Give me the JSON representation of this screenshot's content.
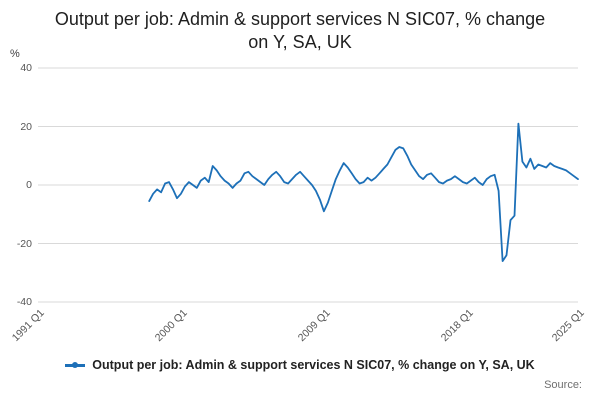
{
  "title": "Output per job: Admin & support services N SIC07, % change on Y, SA, UK",
  "legend": {
    "label": "Output per job: Admin & support services N SIC07, % change on Y, SA, UK"
  },
  "footer": {
    "source_label": "Source:"
  },
  "colors": {
    "line": "#1d70b8",
    "grid": "#d9d9d9",
    "tick_text": "#555555",
    "title_text": "#1f1f1f",
    "source_text": "#6f6f6f"
  },
  "chart_data": {
    "type": "line",
    "title": "Output per job: Admin & support services N SIC07, % change on Y, SA, UK",
    "xlabel": "",
    "ylabel": "%",
    "ylim": [
      -40,
      40
    ],
    "yticks": [
      40,
      20,
      0,
      -20,
      -40
    ],
    "grid": true,
    "legend_position": "bottom",
    "x_axis_period": "quarterly",
    "x_total_quarters": 136,
    "x_range_labels": [
      "1991 Q1",
      "2025 Q1"
    ],
    "xticks": [
      {
        "label": "1991 Q1",
        "quarter_index": 0
      },
      {
        "label": "2000 Q1",
        "quarter_index": 36
      },
      {
        "label": "2009 Q1",
        "quarter_index": 72
      },
      {
        "label": "2018 Q1",
        "quarter_index": 108
      },
      {
        "label": "2025 Q1",
        "quarter_index": 136
      }
    ],
    "series_start_label": "1998 Q1",
    "start_index": 28,
    "values": [
      -5.5,
      -3.0,
      -1.5,
      -2.5,
      0.5,
      1.0,
      -1.5,
      -4.5,
      -3.0,
      -0.5,
      1.0,
      0.0,
      -1.0,
      1.5,
      2.5,
      1.0,
      6.5,
      5.0,
      3.0,
      1.5,
      0.5,
      -1.0,
      0.5,
      1.5,
      4.0,
      4.5,
      3.0,
      2.0,
      1.0,
      0.0,
      2.0,
      3.5,
      4.5,
      3.0,
      1.0,
      0.5,
      2.0,
      3.5,
      4.5,
      3.0,
      1.5,
      0.0,
      -2.0,
      -5.0,
      -9.0,
      -6.0,
      -2.0,
      2.0,
      5.0,
      7.5,
      6.0,
      4.0,
      2.0,
      0.5,
      1.0,
      2.5,
      1.5,
      2.5,
      4.0,
      5.5,
      7.0,
      9.5,
      12.0,
      13.0,
      12.5,
      10.0,
      7.0,
      5.0,
      3.0,
      2.0,
      3.5,
      4.0,
      2.5,
      1.0,
      0.5,
      1.5,
      2.0,
      3.0,
      2.0,
      1.0,
      0.5,
      1.5,
      2.5,
      1.0,
      0.0,
      2.0,
      3.0,
      3.5,
      -2.0,
      -26.0,
      -24.0,
      -12.0,
      -10.5,
      21.0,
      8.0,
      6.0,
      9.0,
      5.5,
      7.0,
      6.5,
      6.0,
      7.5,
      6.5,
      6.0,
      5.5,
      5.0,
      4.0,
      3.0,
      2.0
    ]
  }
}
